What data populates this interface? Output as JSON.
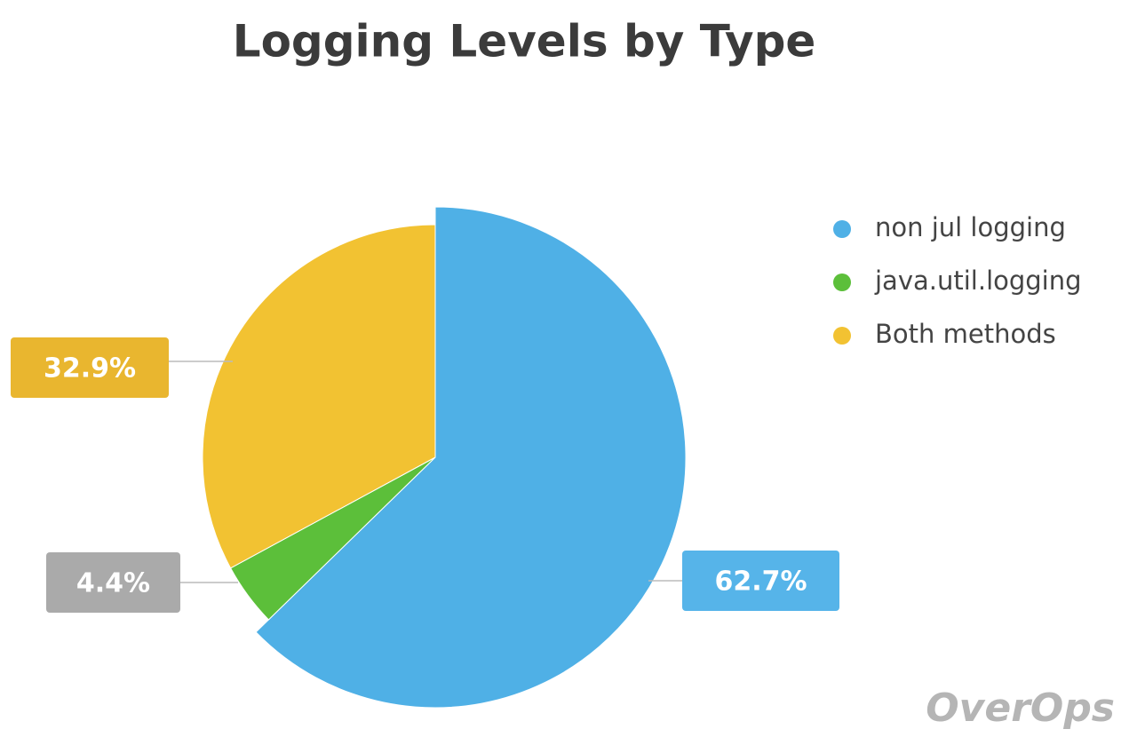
{
  "chart_data": {
    "type": "pie",
    "title": "Logging Levels by Type",
    "categories": [
      "non jul logging",
      "java.util.logging",
      "Both methods"
    ],
    "values": [
      62.7,
      4.4,
      32.9
    ],
    "value_labels": [
      "62.7%",
      "4.4%",
      "32.9%"
    ],
    "colors": [
      "#4fb0e6",
      "#5cbf3a",
      "#f2c232"
    ],
    "label_colors": [
      "#56b4e9",
      "#aaaaaa",
      "#e9b62f"
    ],
    "legend": "right",
    "watermark": "OverOps"
  }
}
